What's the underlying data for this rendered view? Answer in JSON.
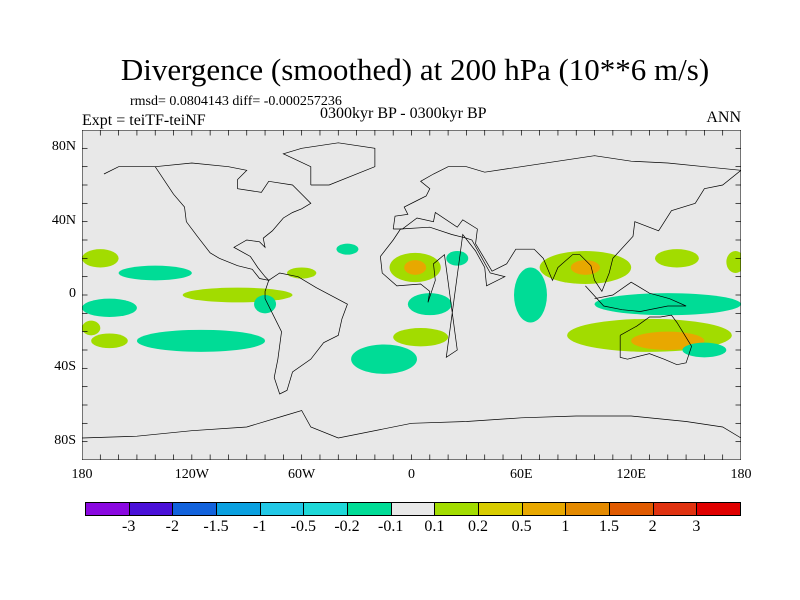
{
  "title": "Divergence (smoothed) at 200 hPa (10**6 m/s)",
  "stats": "rmsd= 0.0804143 diff= -0.000257236",
  "expt": "Expt = teiTF-teiNF",
  "center": "0300kyr BP - 0300kyr BP",
  "season": "ANN",
  "lat_labels": [
    "80N",
    "40N",
    "0",
    "40S",
    "80S"
  ],
  "lat_values": [
    80,
    40,
    0,
    -40,
    -80
  ],
  "lon_labels": [
    "180",
    "120W",
    "60W",
    "0",
    "60E",
    "120E",
    "180"
  ],
  "lon_values": [
    -180,
    -120,
    -60,
    0,
    60,
    120,
    180
  ],
  "colorbar": {
    "colors": [
      "#8a08e0",
      "#4a10d8",
      "#1262dc",
      "#0aa0e0",
      "#22c8e6",
      "#1ed8d8",
      "#00dc96",
      "#e8e8e8",
      "#a2dc00",
      "#d8cc00",
      "#e8a800",
      "#e48a00",
      "#e05a00",
      "#e03210",
      "#e00000"
    ],
    "labels": [
      "-3",
      "-2",
      "-1.5",
      "-1",
      "-0.5",
      "-0.2",
      "-0.1",
      "0.1",
      "0.2",
      "0.5",
      "1",
      "1.5",
      "2",
      "3"
    ]
  },
  "background_color": "#e8e8e8"
}
